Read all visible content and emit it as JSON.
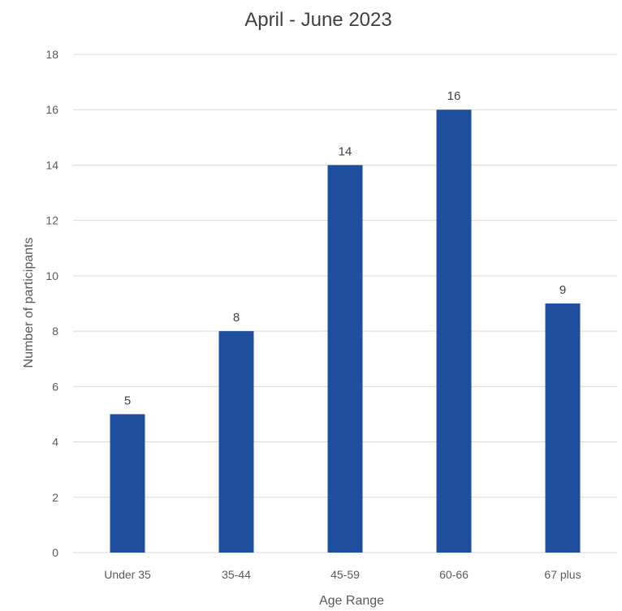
{
  "chart_data": {
    "type": "bar",
    "title": "April - June 2023",
    "xlabel": "Age Range",
    "ylabel": "Number of participants",
    "categories": [
      "Under 35",
      "35-44",
      "45-59",
      "60-66",
      "67 plus"
    ],
    "values": [
      5,
      8,
      14,
      16,
      9
    ],
    "ylim": [
      0,
      18
    ],
    "yticks": [
      0,
      2,
      4,
      6,
      8,
      10,
      12,
      14,
      16,
      18
    ],
    "grid": true,
    "bar_color": "#1f4e9c",
    "data_labels": true
  }
}
